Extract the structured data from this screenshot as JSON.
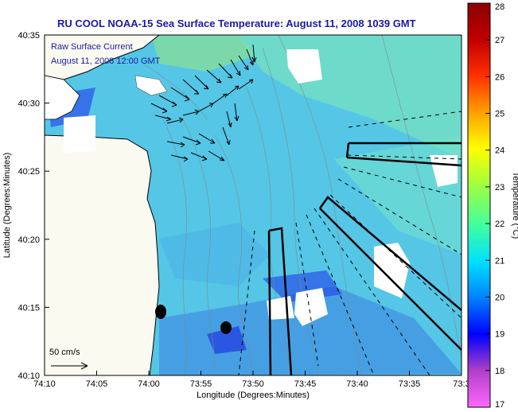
{
  "title": "RU COOL  NOAA-15  Sea Surface Temperature:  August 11, 2008 1039 GMT",
  "legend": {
    "line1": "Raw Surface Current",
    "line2": "August 11, 2008 12:00 GMT",
    "scale_label": "50 cm/s"
  },
  "axes": {
    "xlabel": "Longitude (Degrees:Minutes)",
    "ylabel": "Latitude (Degrees:Minutes)",
    "xticks": [
      "74:10",
      "74:05",
      "74:00",
      "73:55",
      "73:50",
      "73:45",
      "73:40",
      "73:35",
      "73:3"
    ],
    "yticks": [
      "40:35",
      "40:30",
      "40:25",
      "40:20",
      "40:15",
      "40:10"
    ]
  },
  "colorbar": {
    "label": "Temperature (°C)",
    "ticks": [
      "28",
      "27",
      "26",
      "25",
      "24",
      "23",
      "22",
      "21",
      "20",
      "19",
      "18",
      "17"
    ],
    "stops": [
      "#ff66ff",
      "#b040c8",
      "#0000ff",
      "#0080ff",
      "#00e0ff",
      "#40ffa0",
      "#a0ff40",
      "#ffff00",
      "#ffa000",
      "#ff3000",
      "#c00000",
      "#8b0000"
    ]
  },
  "colors": {
    "water_base": "#55c6e6",
    "water_warm": "#7de8b8",
    "water_cool": "#3a80e0",
    "land": "#fafaf0",
    "title": "#1a1aa6"
  }
}
